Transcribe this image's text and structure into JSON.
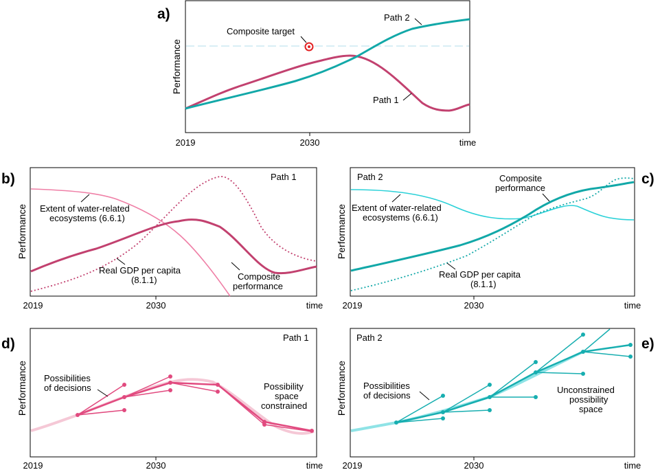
{
  "colors": {
    "path1_dark": "#c2416f",
    "path1_light": "#ef7fa6",
    "path1_decision": "#e14a7f",
    "path1_faint": "#f5c8d6",
    "path2_dark": "#12a8a8",
    "path2_light": "#2ad1d8",
    "path2_decision": "#17aeb0",
    "path2_faint": "#8fe3e6",
    "target_line": "#cbe8f2",
    "target_marker": "#e32224"
  },
  "panel_a": {
    "letter": "a)",
    "y_label": "Performance",
    "x_ticks": [
      "2019",
      "2030",
      "time"
    ],
    "labels": {
      "target": "Composite target",
      "path1": "Path 1",
      "path2": "Path 2"
    }
  },
  "panel_b": {
    "letter": "b)",
    "path_label": "Path 1",
    "y_label": "Performance",
    "x_ticks": [
      "2019",
      "2030",
      "time"
    ],
    "labels": {
      "water_line1": "Extent of water-related",
      "water_line2": "ecosystems (6.6.1)",
      "gdp_line1": "Real GDP per capita",
      "gdp_line2": "(8.1.1)",
      "comp_line1": "Composite",
      "comp_line2": "performance"
    }
  },
  "panel_c": {
    "letter": "c)",
    "path_label": "Path 2",
    "y_label": "Performance",
    "x_ticks": [
      "2019",
      "2030",
      "time"
    ],
    "labels": {
      "water_line1": "Extent of water-related",
      "water_line2": "ecosystems (6.6.1)",
      "gdp_line1": "Real GDP per capita",
      "gdp_line2": "(8.1.1)",
      "comp_line1": "Composite",
      "comp_line2": "performance"
    }
  },
  "panel_d": {
    "letter": "d)",
    "path_label": "Path 1",
    "y_label": "Performance",
    "x_ticks": [
      "2019",
      "2030",
      "time"
    ],
    "labels": {
      "decisions_line1": "Possibilities",
      "decisions_line2": "of decisions",
      "space_line1": "Possibility",
      "space_line2": "space",
      "space_line3": "constrained"
    }
  },
  "panel_e": {
    "letter": "e)",
    "path_label": "Path 2",
    "y_label": "Performance",
    "x_ticks": [
      "2019",
      "2030",
      "time"
    ],
    "labels": {
      "decisions_line1": "Possibilities",
      "decisions_line2": "of decisions",
      "space_line1": "Unconstrained",
      "space_line2": "possibility",
      "space_line3": "space"
    }
  }
}
